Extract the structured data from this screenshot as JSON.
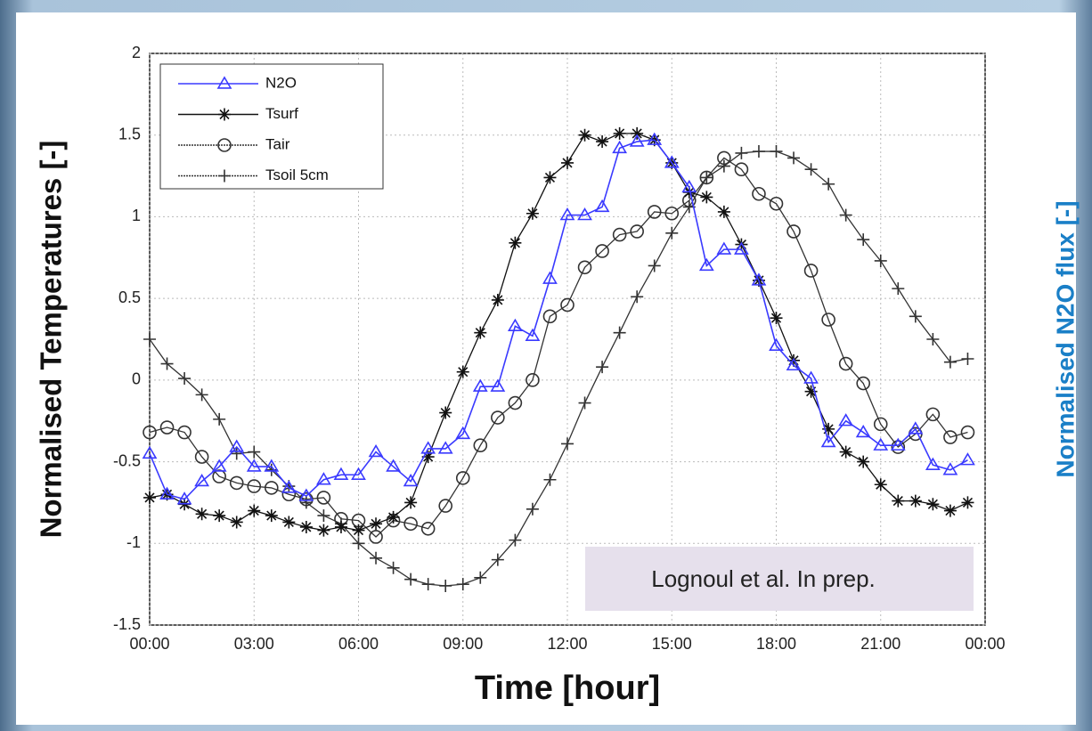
{
  "chart_data": {
    "type": "line",
    "y_label": "Normalised Temperatures [-]",
    "y2_label": "Normalised N2O flux [-]",
    "x_label": "Time [hour]",
    "annotation": "Lognoul et al. In prep.",
    "x": [
      0,
      0.5,
      1,
      1.5,
      2,
      2.5,
      3,
      3.5,
      4,
      4.5,
      5,
      5.5,
      6,
      6.5,
      7,
      7.5,
      8,
      8.5,
      9,
      9.5,
      10,
      10.5,
      11,
      11.5,
      12,
      12.5,
      13,
      13.5,
      14,
      14.5,
      15,
      15.5,
      16,
      16.5,
      17,
      17.5,
      18,
      18.5,
      19,
      19.5,
      20,
      20.5,
      21,
      21.5,
      22,
      22.5,
      23,
      23.5
    ],
    "xlim": [
      0,
      24
    ],
    "xticks": [
      {
        "value": 0,
        "label": "00:00"
      },
      {
        "value": 3,
        "label": "03:00"
      },
      {
        "value": 6,
        "label": "06:00"
      },
      {
        "value": 9,
        "label": "09:00"
      },
      {
        "value": 12,
        "label": "12:00"
      },
      {
        "value": 15,
        "label": "15:00"
      },
      {
        "value": 18,
        "label": "18:00"
      },
      {
        "value": 21,
        "label": "21:00"
      },
      {
        "value": 24,
        "label": "00:00"
      }
    ],
    "ylim": [
      -1.5,
      2
    ],
    "yticks": [
      -1.5,
      -1,
      -0.5,
      0,
      0.5,
      1,
      1.5,
      2
    ],
    "grid": true,
    "legend": "upper left",
    "series": [
      {
        "name": "N2O",
        "color": "#3a3aff",
        "marker": "triangle",
        "values": [
          -0.45,
          -0.7,
          -0.73,
          -0.62,
          -0.53,
          -0.41,
          -0.53,
          -0.53,
          -0.66,
          -0.71,
          -0.61,
          -0.58,
          -0.58,
          -0.44,
          -0.53,
          -0.62,
          -0.42,
          -0.42,
          -0.33,
          -0.04,
          -0.04,
          0.33,
          0.27,
          0.62,
          1.01,
          1.01,
          1.06,
          1.42,
          1.46,
          1.47,
          1.33,
          1.18,
          0.7,
          0.8,
          0.8,
          0.61,
          0.21,
          0.09,
          0.01,
          -0.38,
          -0.25,
          -0.32,
          -0.4,
          -0.4,
          -0.3,
          -0.52,
          -0.55,
          -0.49
        ]
      },
      {
        "name": "Tsurf",
        "color": "#111111",
        "marker": "star",
        "values": [
          -0.72,
          -0.7,
          -0.76,
          -0.82,
          -0.83,
          -0.87,
          -0.8,
          -0.83,
          -0.87,
          -0.9,
          -0.92,
          -0.9,
          -0.92,
          -0.88,
          -0.84,
          -0.75,
          -0.47,
          -0.2,
          0.05,
          0.29,
          0.49,
          0.84,
          1.02,
          1.24,
          1.33,
          1.5,
          1.46,
          1.51,
          1.51,
          1.47,
          1.33,
          1.15,
          1.12,
          1.03,
          0.83,
          0.61,
          0.38,
          0.12,
          -0.07,
          -0.3,
          -0.44,
          -0.5,
          -0.64,
          -0.74,
          -0.74,
          -0.76,
          -0.8,
          -0.75
        ]
      },
      {
        "name": "Tair",
        "color": "#333333",
        "marker": "circle",
        "values": [
          -0.32,
          -0.29,
          -0.32,
          -0.47,
          -0.59,
          -0.63,
          -0.65,
          -0.66,
          -0.7,
          -0.73,
          -0.72,
          -0.85,
          -0.86,
          -0.96,
          -0.86,
          -0.88,
          -0.91,
          -0.77,
          -0.6,
          -0.4,
          -0.23,
          -0.14,
          0.0,
          0.39,
          0.46,
          0.69,
          0.79,
          0.89,
          0.91,
          1.03,
          1.02,
          1.1,
          1.24,
          1.36,
          1.29,
          1.14,
          1.08,
          0.91,
          0.67,
          0.37,
          0.1,
          -0.02,
          -0.27,
          -0.41,
          -0.33,
          -0.21,
          -0.35,
          -0.32
        ]
      },
      {
        "name": "Tsoil 5cm",
        "color": "#333333",
        "marker": "plus",
        "values": [
          0.25,
          0.1,
          0.01,
          -0.09,
          -0.24,
          -0.45,
          -0.44,
          -0.55,
          -0.65,
          -0.75,
          -0.83,
          -0.88,
          -1.0,
          -1.09,
          -1.15,
          -1.22,
          -1.25,
          -1.26,
          -1.25,
          -1.21,
          -1.1,
          -0.98,
          -0.79,
          -0.61,
          -0.39,
          -0.14,
          0.08,
          0.29,
          0.51,
          0.7,
          0.9,
          1.06,
          1.24,
          1.31,
          1.39,
          1.4,
          1.4,
          1.36,
          1.29,
          1.2,
          1.01,
          0.86,
          0.73,
          0.56,
          0.39,
          0.25,
          0.11,
          0.13
        ]
      }
    ]
  }
}
